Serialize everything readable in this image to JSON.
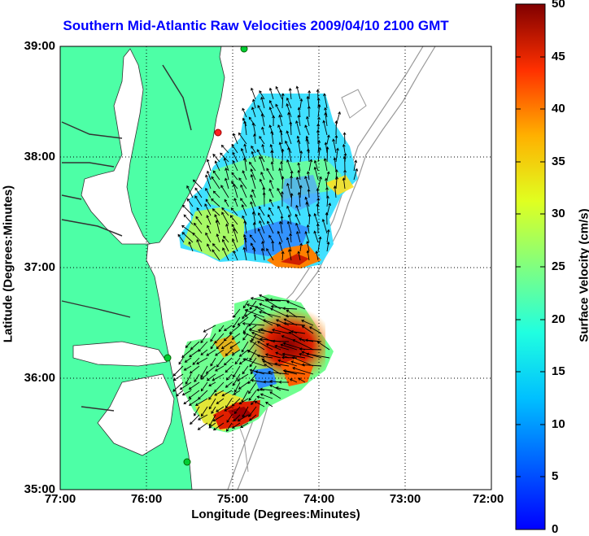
{
  "title": "Southern Mid-Atlantic Raw Velocities 2009/04/10 2100 GMT",
  "xlabel": "Longitude (Degrees:Minutes)",
  "ylabel": "Latitude (Degrees:Minutes)",
  "colorbar_label": "Surface Velocity (cm/s)",
  "x_ticks": [
    "77:00",
    "76:00",
    "75:00",
    "74:00",
    "73:00",
    "72:00"
  ],
  "y_ticks": [
    "39:00",
    "38:00",
    "37:00",
    "36:00",
    "35:00"
  ],
  "colorbar_ticks": [
    "0",
    "5",
    "10",
    "15",
    "20",
    "25",
    "30",
    "35",
    "40",
    "45",
    "50"
  ],
  "map": {
    "lon_range": [
      -77,
      -72
    ],
    "lat_range": [
      35,
      39
    ],
    "velocity_range_cm_s": [
      0,
      50
    ],
    "colormap": "jet",
    "land_color": "#4dffa6",
    "bathymetry_color": "#999999",
    "grid": "dotted",
    "station_markers": [
      {
        "name": "station-1",
        "color": "#00cc33",
        "lon": -74.87,
        "lat": 38.98
      },
      {
        "name": "station-2",
        "color": "#ff2222",
        "lon": -75.17,
        "lat": 38.23
      },
      {
        "name": "station-3",
        "color": "#00cc33",
        "lon": -75.73,
        "lat": 36.2
      },
      {
        "name": "station-4",
        "color": "#00cc33",
        "lon": -75.45,
        "lat": 35.25
      }
    ]
  }
}
